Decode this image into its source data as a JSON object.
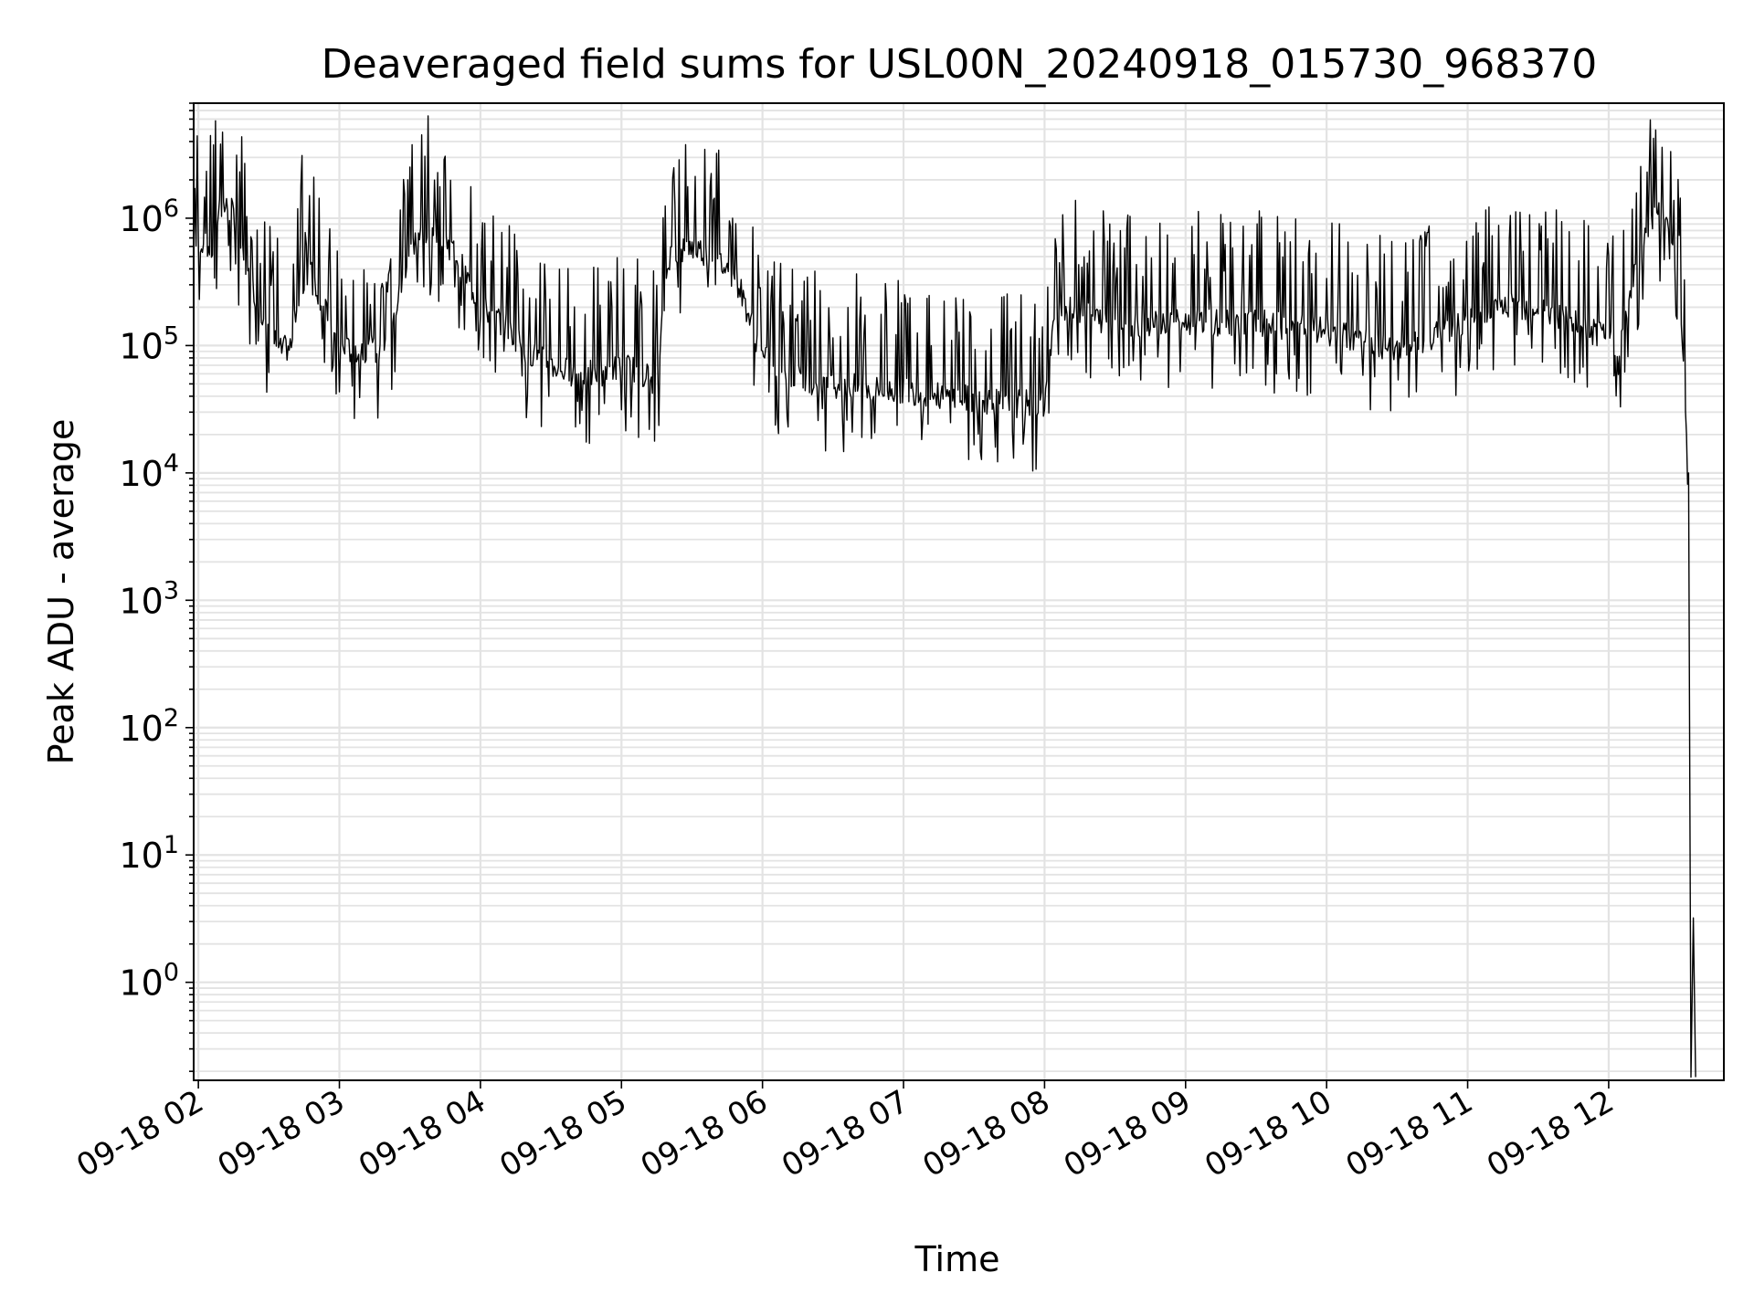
{
  "chart_data": {
    "type": "line",
    "title": "Deaveraged field sums for USL00N_20240918_015730_968370",
    "xlabel": "Time",
    "ylabel": "Peak ADU - average",
    "xlim": [
      "09-18 01:58",
      "09-18 12:49"
    ],
    "ylim": [
      0.17,
      8000000
    ],
    "y_scale": "log",
    "grid": true,
    "x_tick_labels": [
      "09-18 02",
      "09-18 03",
      "09-18 04",
      "09-18 05",
      "09-18 06",
      "09-18 07",
      "09-18 08",
      "09-18 09",
      "09-18 10",
      "09-18 11",
      "09-18 12"
    ],
    "y_tick_labels": [
      {
        "base": "10",
        "exp": "0"
      },
      {
        "base": "10",
        "exp": "1"
      },
      {
        "base": "10",
        "exp": "2"
      },
      {
        "base": "10",
        "exp": "3"
      },
      {
        "base": "10",
        "exp": "4"
      },
      {
        "base": "10",
        "exp": "5"
      },
      {
        "base": "10",
        "exp": "6"
      }
    ],
    "series": [
      {
        "color": "#000000",
        "note": "single noisy series; [time, value]",
        "points": [
          [
            "09-18 01:58",
            520000
          ],
          [
            "09-18 02:00",
            700000
          ],
          [
            "09-18 02:03",
            600000
          ],
          [
            "09-18 02:06",
            560000
          ],
          [
            "09-18 02:09",
            1300000
          ],
          [
            "09-18 02:12",
            1200000
          ],
          [
            "09-18 02:15",
            1100000
          ],
          [
            "09-18 02:18",
            600000
          ],
          [
            "09-18 02:21",
            350000
          ],
          [
            "09-18 02:25",
            230000
          ],
          [
            "09-18 02:30",
            130000
          ],
          [
            "09-18 02:35",
            90000
          ],
          [
            "09-18 02:40",
            100000
          ],
          [
            "09-18 02:45",
            900000
          ],
          [
            "09-18 02:50",
            300000
          ],
          [
            "09-18 03:00",
            90000
          ],
          [
            "09-18 03:10",
            95000
          ],
          [
            "09-18 03:20",
            90000
          ],
          [
            "09-18 03:30",
            600000
          ],
          [
            "09-18 03:40",
            900000
          ],
          [
            "09-18 03:50",
            500000
          ],
          [
            "09-18 04:00",
            200000
          ],
          [
            "09-18 04:10",
            150000
          ],
          [
            "09-18 04:20",
            90000
          ],
          [
            "09-18 04:30",
            70000
          ],
          [
            "09-18 04:40",
            60000
          ],
          [
            "09-18 04:50",
            60000
          ],
          [
            "09-18 05:00",
            70000
          ],
          [
            "09-18 05:10",
            60000
          ],
          [
            "09-18 05:15",
            50000
          ],
          [
            "09-18 05:20",
            500000
          ],
          [
            "09-18 05:30",
            600000
          ],
          [
            "09-18 05:40",
            500000
          ],
          [
            "09-18 05:50",
            300000
          ],
          [
            "09-18 06:00",
            80000
          ],
          [
            "09-18 06:15",
            55000
          ],
          [
            "09-18 06:30",
            50000
          ],
          [
            "09-18 06:45",
            45000
          ],
          [
            "09-18 07:00",
            45000
          ],
          [
            "09-18 07:15",
            40000
          ],
          [
            "09-18 07:30",
            38000
          ],
          [
            "09-18 07:45",
            35000
          ],
          [
            "09-18 08:00",
            35000
          ],
          [
            "09-18 08:05",
            200000
          ],
          [
            "09-18 08:30",
            150000
          ],
          [
            "09-18 09:00",
            150000
          ],
          [
            "09-18 09:30",
            150000
          ],
          [
            "09-18 10:00",
            130000
          ],
          [
            "09-18 10:30",
            90000
          ],
          [
            "09-18 11:00",
            150000
          ],
          [
            "09-18 11:15",
            200000
          ],
          [
            "09-18 11:30",
            200000
          ],
          [
            "09-18 11:45",
            150000
          ],
          [
            "09-18 12:05",
            100000
          ],
          [
            "09-18 12:10",
            300000
          ],
          [
            "09-18 12:15",
            700000
          ],
          [
            "09-18 12:20",
            1200000
          ],
          [
            "09-18 12:25",
            1000000
          ],
          [
            "09-18 12:30",
            300000
          ],
          [
            "09-18 12:34",
            10000
          ],
          [
            "09-18 12:35",
            0.18
          ],
          [
            "09-18 12:36",
            3.2
          ],
          [
            "09-18 12:37",
            0.18
          ]
        ]
      }
    ]
  }
}
